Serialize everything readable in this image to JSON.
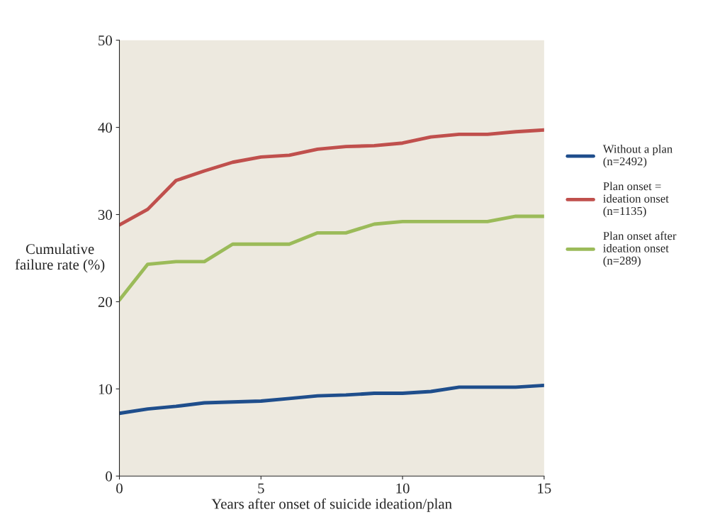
{
  "chart_data": {
    "type": "line",
    "xlabel": "Years after onset of suicide ideation/plan",
    "ylabel": "Cumulative\nfailure rate (%)",
    "x": [
      0,
      1,
      2,
      3,
      4,
      5,
      6,
      7,
      8,
      9,
      10,
      11,
      12,
      13,
      14,
      15
    ],
    "series": [
      {
        "name": "Without a plan\n(n=2492)",
        "color": "#1f4e8c",
        "values": [
          7.2,
          7.7,
          8.0,
          8.4,
          8.5,
          8.6,
          8.9,
          9.2,
          9.3,
          9.5,
          9.5,
          9.7,
          10.2,
          10.2,
          10.2,
          10.4
        ]
      },
      {
        "name": "Plan onset =\nideation onset\n(n=1135)",
        "color": "#c0504d",
        "values": [
          28.8,
          30.6,
          33.9,
          35.0,
          36.0,
          36.6,
          36.8,
          37.5,
          37.8,
          37.9,
          38.2,
          38.9,
          39.2,
          39.2,
          39.5,
          39.7
        ]
      },
      {
        "name": "Plan onset after\nideation onset\n(n=289)",
        "color": "#9bbb59",
        "values": [
          20.2,
          24.3,
          24.6,
          24.6,
          26.6,
          26.6,
          26.6,
          27.9,
          27.9,
          28.9,
          29.2,
          29.2,
          29.2,
          29.2,
          29.8,
          29.8
        ]
      }
    ],
    "xlim": [
      0,
      15
    ],
    "ylim": [
      0,
      50
    ],
    "xticks": [
      0,
      5,
      10,
      15
    ],
    "yticks": [
      0,
      10,
      20,
      30,
      40,
      50
    ],
    "grid": false,
    "legend": "right",
    "marker": "none",
    "line_style": "solid"
  }
}
